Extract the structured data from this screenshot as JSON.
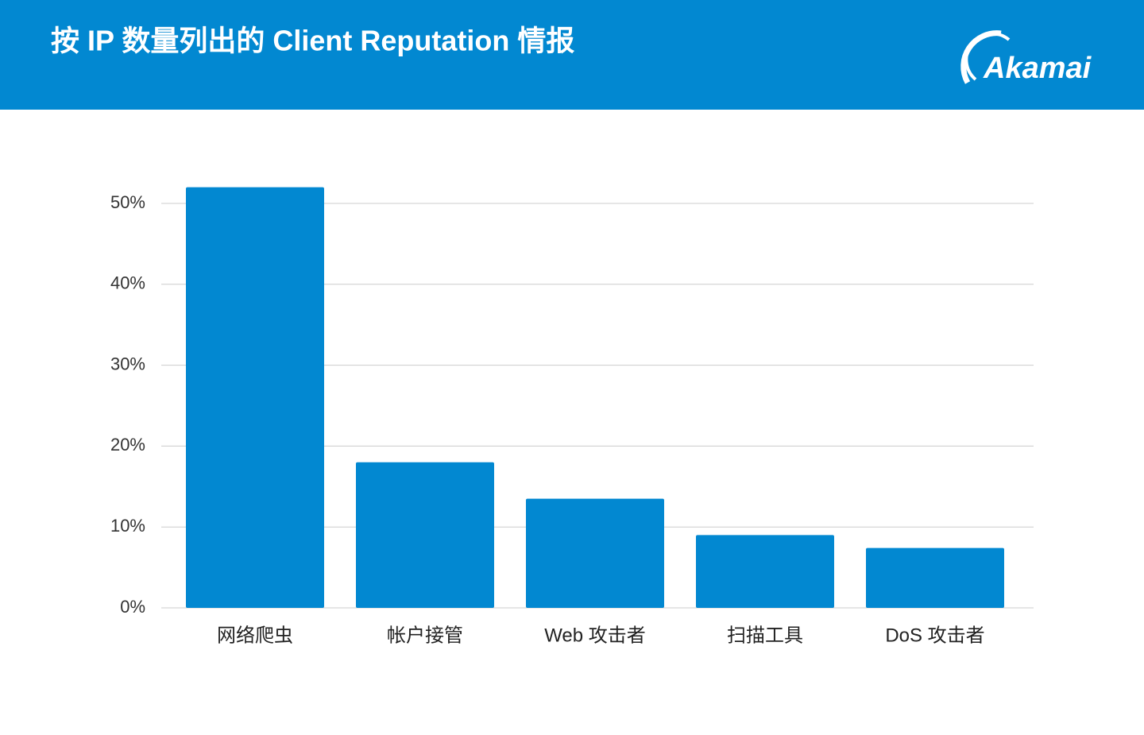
{
  "brand": "Akamai",
  "chart_data": {
    "type": "bar",
    "title": "按 IP 数量列出的 Client Reputation 情报",
    "categories": [
      "网络爬虫",
      "帐户接管",
      "Web 攻击者",
      "扫描工具",
      "DoS 攻击者"
    ],
    "values": [
      52,
      18,
      13.5,
      9,
      7.4
    ],
    "color": "#0288d1",
    "ylim": [
      0,
      50
    ],
    "yticks": [
      {
        "value": 0,
        "label": "0%"
      },
      {
        "value": 10,
        "label": "10%"
      },
      {
        "value": 20,
        "label": "20%"
      },
      {
        "value": 30,
        "label": "30%"
      },
      {
        "value": 40,
        "label": "40%"
      },
      {
        "value": 50,
        "label": "50%"
      }
    ],
    "grid": true
  }
}
